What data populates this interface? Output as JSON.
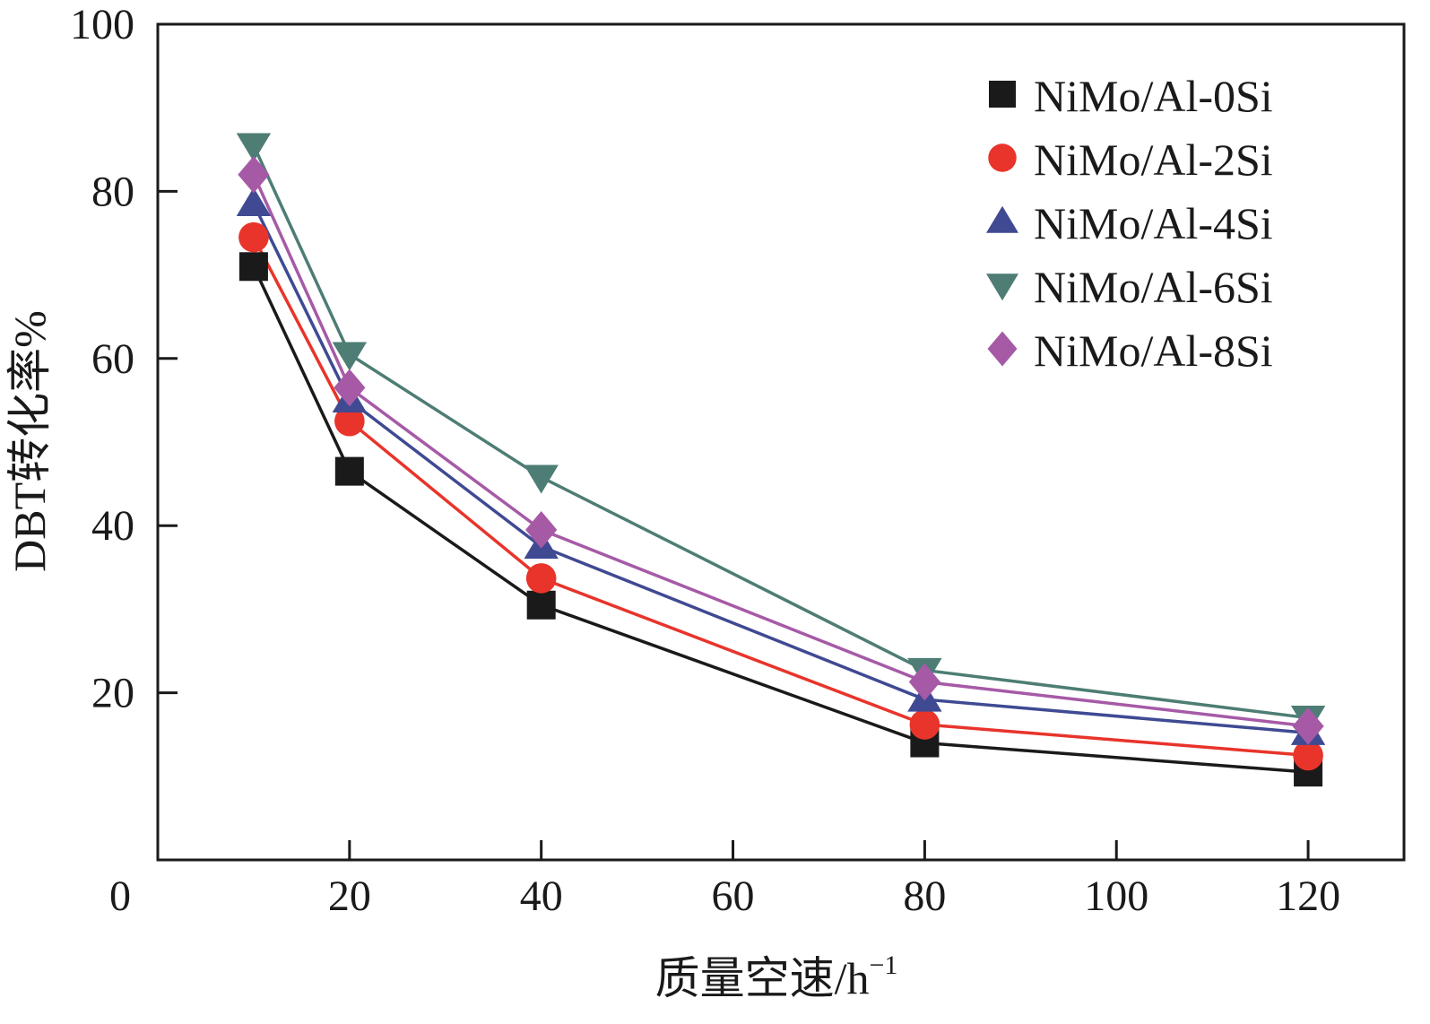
{
  "chart_data": {
    "type": "line",
    "title": "",
    "xlabel": "质量空速/h",
    "xlabel_superscript": "−1",
    "ylabel": "DBT转化率%",
    "xlim": [
      0,
      130
    ],
    "ylim": [
      0,
      100
    ],
    "x_origin_label": "0",
    "xticks": [
      20,
      40,
      60,
      80,
      100,
      120
    ],
    "yticks": [
      20,
      40,
      60,
      80,
      100
    ],
    "legend_position": "top-right",
    "grid": false,
    "x": [
      10,
      20,
      40,
      80,
      120
    ],
    "series": [
      {
        "name": "NiMo/Al-0Si",
        "marker": "square",
        "color": "#1a1a1a",
        "line_color": "#1a1a1a",
        "values": [
          71,
          46.5,
          30.5,
          14,
          10.5
        ]
      },
      {
        "name": "NiMo/Al-2Si",
        "marker": "circle",
        "color": "#e8342b",
        "line_color": "#e8342b",
        "values": [
          74.5,
          52.5,
          33.7,
          16.2,
          12.5
        ]
      },
      {
        "name": "NiMo/Al-4Si",
        "marker": "triangle-up",
        "color": "#3f4a93",
        "line_color": "#3f4a93",
        "values": [
          78.5,
          55,
          37.5,
          19.2,
          15.2
        ]
      },
      {
        "name": "NiMo/Al-6Si",
        "marker": "triangle-down",
        "color": "#4d7d74",
        "line_color": "#4d7d74",
        "values": [
          85.5,
          60.5,
          45.8,
          22.7,
          17
        ]
      },
      {
        "name": "NiMo/Al-8Si",
        "marker": "diamond",
        "color": "#a65aa6",
        "line_color": "#a65aa6",
        "values": [
          82,
          56.5,
          39.5,
          21.3,
          16
        ]
      }
    ]
  }
}
